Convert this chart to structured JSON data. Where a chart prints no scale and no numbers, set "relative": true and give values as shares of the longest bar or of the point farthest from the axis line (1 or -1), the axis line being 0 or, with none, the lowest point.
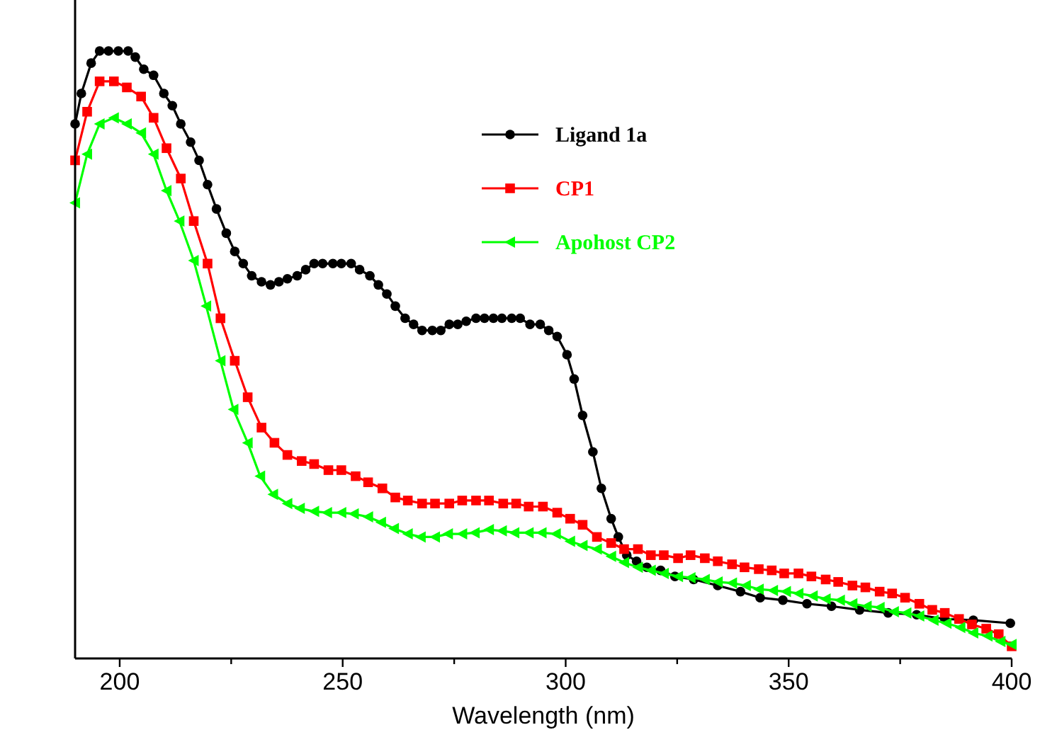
{
  "chart_data": {
    "type": "line",
    "xlabel": "Wavelength (nm)",
    "relative": true,
    "tick_labels": "x",
    "legend": "top right",
    "grid": false,
    "xlim": [
      190,
      400
    ],
    "xticks": [
      200,
      {
        "value": 225,
        "label": null
      },
      250,
      {
        "value": 275,
        "label": null
      },
      300,
      {
        "value": 325,
        "label": null
      },
      350,
      {
        "value": 375,
        "label": null
      },
      400
    ],
    "series": [
      {
        "name": "Ligand 1a",
        "color": "#000000",
        "marker": "circle",
        "x": [
          190,
          191.4,
          193.6,
          195.5,
          197.5,
          199.7,
          201.9,
          203.5,
          205.4,
          207.6,
          209.9,
          211.8,
          213.7,
          215.9,
          217.8,
          219.7,
          221.7,
          223.9,
          225.8,
          227.7,
          229.6,
          231.8,
          233.8,
          235.7,
          237.6,
          239.8,
          241.7,
          243.6,
          245.5,
          247.8,
          249.7,
          251.9,
          253.8,
          256.1,
          258,
          259.9,
          261.8,
          264,
          265.9,
          267.8,
          270.1,
          272,
          273.9,
          275.8,
          277.7,
          279.9,
          281.8,
          283.8,
          285.7,
          287.9,
          289.8,
          292,
          294.3,
          296.2,
          298.1,
          300.3,
          301.9,
          303.8,
          306.1,
          308,
          310.2,
          311.8,
          313.7,
          315.9,
          318.2,
          321.3,
          324.5,
          328.7,
          334.1,
          339.2,
          343.6,
          348.7,
          354.1,
          359.6,
          365.9,
          372.3,
          378.7,
          385,
          391.4,
          399.7
        ],
        "values": [
          0.88,
          0.93,
          0.98,
          1.0,
          1.0,
          1.0,
          1.0,
          0.99,
          0.97,
          0.96,
          0.93,
          0.91,
          0.88,
          0.85,
          0.82,
          0.78,
          0.74,
          0.7,
          0.67,
          0.65,
          0.63,
          0.62,
          0.615,
          0.62,
          0.625,
          0.63,
          0.64,
          0.65,
          0.65,
          0.65,
          0.65,
          0.65,
          0.64,
          0.63,
          0.615,
          0.6,
          0.58,
          0.56,
          0.55,
          0.54,
          0.54,
          0.54,
          0.55,
          0.55,
          0.555,
          0.56,
          0.56,
          0.56,
          0.56,
          0.56,
          0.56,
          0.55,
          0.55,
          0.54,
          0.53,
          0.5,
          0.46,
          0.4,
          0.34,
          0.28,
          0.23,
          0.2,
          0.17,
          0.16,
          0.15,
          0.145,
          0.135,
          0.13,
          0.12,
          0.11,
          0.1,
          0.096,
          0.09,
          0.086,
          0.08,
          0.075,
          0.072,
          0.065,
          0.063,
          0.058
        ]
      },
      {
        "name": "CP1",
        "color": "#ff0000",
        "marker": "square",
        "x": [
          190,
          192.7,
          195.5,
          198.7,
          201.6,
          204.8,
          207.6,
          210.5,
          213.7,
          216.6,
          219.7,
          222.6,
          225.8,
          228.7,
          231.8,
          234.7,
          237.6,
          240.8,
          243.6,
          246.8,
          249.7,
          252.9,
          255.7,
          258.9,
          261.8,
          264.6,
          267.8,
          270.7,
          273.9,
          276.8,
          279.9,
          282.8,
          286,
          288.9,
          291.7,
          294.9,
          298.1,
          301,
          303.8,
          307,
          310.2,
          313.1,
          316.2,
          319.1,
          322,
          325.2,
          328,
          331.2,
          334.1,
          337.3,
          340.1,
          343.3,
          346.2,
          349,
          352.2,
          355.1,
          358.3,
          361.1,
          364.3,
          367.2,
          370.4,
          373.2,
          376.1,
          379.3,
          382.2,
          385,
          388.2,
          391.1,
          394.3,
          397.1,
          400
        ],
        "values": [
          0.82,
          0.9,
          0.95,
          0.95,
          0.94,
          0.925,
          0.89,
          0.84,
          0.79,
          0.72,
          0.65,
          0.56,
          0.49,
          0.43,
          0.38,
          0.355,
          0.335,
          0.325,
          0.32,
          0.31,
          0.31,
          0.3,
          0.29,
          0.28,
          0.265,
          0.26,
          0.255,
          0.255,
          0.255,
          0.26,
          0.26,
          0.26,
          0.255,
          0.255,
          0.25,
          0.25,
          0.24,
          0.23,
          0.22,
          0.2,
          0.19,
          0.18,
          0.18,
          0.17,
          0.17,
          0.165,
          0.17,
          0.165,
          0.16,
          0.155,
          0.15,
          0.147,
          0.145,
          0.14,
          0.14,
          0.135,
          0.13,
          0.126,
          0.12,
          0.117,
          0.11,
          0.107,
          0.1,
          0.09,
          0.08,
          0.075,
          0.065,
          0.056,
          0.049,
          0.04,
          0.02
        ]
      },
      {
        "name": "Apohost CP2",
        "color": "#00ff00",
        "marker": "triangle",
        "x": [
          190,
          192.7,
          195.5,
          198.7,
          201.6,
          204.8,
          207.6,
          210.5,
          213.4,
          216.6,
          219.4,
          222.6,
          225.5,
          228.7,
          231.5,
          234.4,
          237.6,
          240.4,
          243.6,
          246.5,
          249.7,
          252.5,
          255.7,
          258.6,
          261.5,
          264.6,
          267.5,
          270.7,
          273.6,
          276.8,
          279.6,
          282.8,
          285.7,
          288.5,
          291.7,
          294.6,
          297.8,
          301,
          303.8,
          307,
          310.2,
          313.1,
          316.2,
          319.1,
          322,
          325.2,
          328,
          331.2,
          334.1,
          337.3,
          340.4,
          343.3,
          346.5,
          349.4,
          352.2,
          355.4,
          358.3,
          361.5,
          364.3,
          367.5,
          370.4,
          373.6,
          376.4,
          379.3,
          382.5,
          385.4,
          388.5,
          391.4,
          394.6,
          397.5,
          400
        ],
        "values": [
          0.75,
          0.83,
          0.88,
          0.89,
          0.88,
          0.865,
          0.83,
          0.77,
          0.72,
          0.655,
          0.58,
          0.49,
          0.41,
          0.355,
          0.3,
          0.27,
          0.255,
          0.247,
          0.242,
          0.24,
          0.24,
          0.238,
          0.233,
          0.224,
          0.214,
          0.205,
          0.2,
          0.2,
          0.205,
          0.205,
          0.207,
          0.212,
          0.21,
          0.207,
          0.207,
          0.207,
          0.205,
          0.193,
          0.186,
          0.18,
          0.168,
          0.158,
          0.15,
          0.145,
          0.14,
          0.135,
          0.133,
          0.13,
          0.126,
          0.124,
          0.12,
          0.114,
          0.112,
          0.11,
          0.107,
          0.103,
          0.098,
          0.096,
          0.09,
          0.086,
          0.084,
          0.077,
          0.075,
          0.07,
          0.063,
          0.058,
          0.051,
          0.042,
          0.037,
          0.028,
          0.023
        ]
      }
    ]
  }
}
